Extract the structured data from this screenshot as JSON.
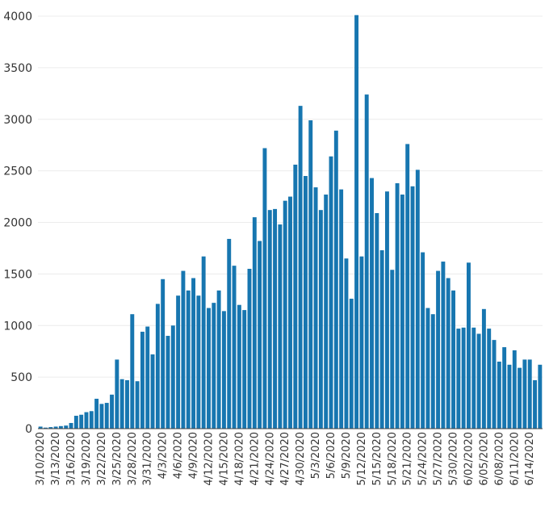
{
  "chart_data": {
    "type": "bar",
    "title": "",
    "xlabel": "",
    "ylabel": "",
    "ylim": [
      0,
      4000
    ],
    "yticks": [
      0,
      500,
      1000,
      1500,
      2000,
      2500,
      3000,
      3500,
      4000
    ],
    "xtick_labels": [
      "3/10/2020",
      "3/13/2020",
      "3/16/2020",
      "3/19/2020",
      "3/22/2020",
      "3/25/2020",
      "3/28/2020",
      "3/31/2020",
      "4/3/2020",
      "4/6/2020",
      "4/9/2020",
      "4/12/2020",
      "4/15/2020",
      "4/18/2020",
      "4/21/2020",
      "4/24/2020",
      "4/27/2020",
      "4/30/2020",
      "5/3/2020",
      "5/6/2020",
      "5/9/2020",
      "5/12/2020",
      "5/15/2020",
      "5/18/2020",
      "5/21/2020",
      "5/24/2020",
      "5/27/2020",
      "5/30/2020",
      "6/02/2020",
      "6/05/2020",
      "6/08/2020",
      "6/11/2020",
      "6/14/2020"
    ],
    "start_date": "2020-03-10",
    "grid": true,
    "legend": "none",
    "bar_color": "#1776b0",
    "values": [
      20,
      10,
      15,
      20,
      25,
      30,
      55,
      125,
      135,
      160,
      170,
      290,
      240,
      250,
      330,
      670,
      480,
      470,
      1110,
      460,
      940,
      990,
      720,
      1210,
      1450,
      900,
      1000,
      1290,
      1530,
      1340,
      1460,
      1290,
      1670,
      1170,
      1220,
      1340,
      1140,
      1840,
      1580,
      1200,
      1150,
      1550,
      2050,
      1820,
      2720,
      2120,
      2130,
      1980,
      2210,
      2250,
      2560,
      3130,
      2450,
      2990,
      2340,
      2120,
      2270,
      2640,
      2890,
      2320,
      1650,
      1260,
      4010,
      1670,
      3240,
      2430,
      2090,
      1730,
      2300,
      1540,
      2380,
      2270,
      2760,
      2350,
      2510,
      1710,
      1170,
      1110,
      1530,
      1620,
      1460,
      1340,
      970,
      980,
      1610,
      980,
      920,
      1160,
      970,
      860,
      650,
      790,
      620,
      760,
      590,
      670,
      670,
      470,
      620
    ]
  }
}
